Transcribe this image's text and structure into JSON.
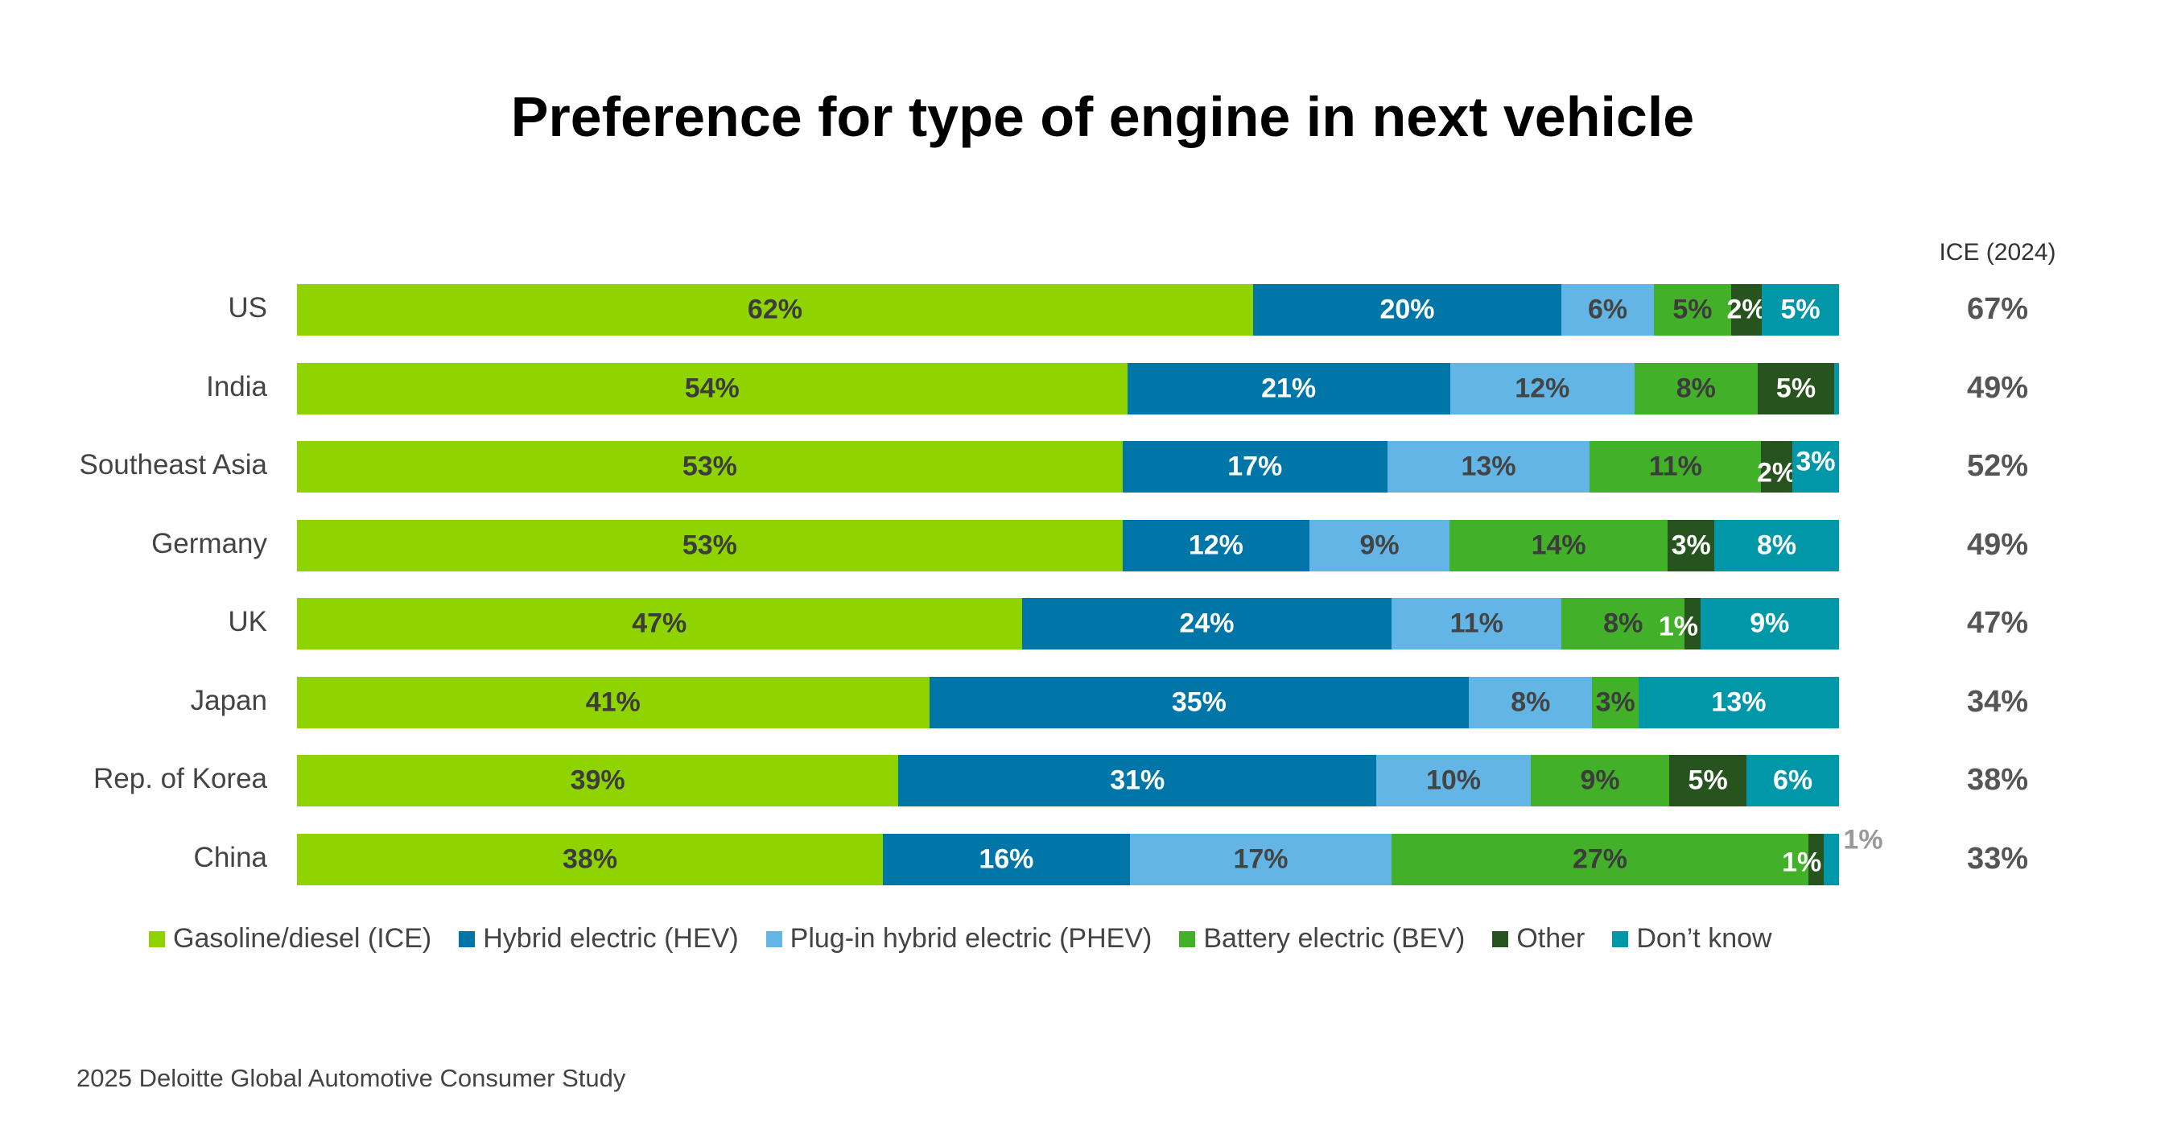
{
  "chart_data": {
    "type": "bar",
    "orientation": "horizontal",
    "stacked": true,
    "title": "Preference for type of engine in next vehicle",
    "categories": [
      "US",
      "India",
      "Southeast Asia",
      "Germany",
      "UK",
      "Japan",
      "Rep. of Korea",
      "China"
    ],
    "series": [
      {
        "name": "Gasoline/diesel (ICE)",
        "color": "#8FD400",
        "label_color": "#3c3c3c",
        "values": [
          62,
          54,
          53,
          53,
          47,
          41,
          39,
          38
        ],
        "labels": [
          "62%",
          "54%",
          "53%",
          "53%",
          "47%",
          "41%",
          "39%",
          "38%"
        ]
      },
      {
        "name": "Hybrid electric (HEV)",
        "color": "#0076A8",
        "label_color": "#ffffff",
        "values": [
          20,
          21,
          17,
          12,
          24,
          35,
          31,
          16
        ],
        "labels": [
          "20%",
          "21%",
          "17%",
          "12%",
          "24%",
          "35%",
          "31%",
          "16%"
        ]
      },
      {
        "name": "Plug-in hybrid electric (PHEV)",
        "color": "#62B5E5",
        "label_color": "#444444",
        "values": [
          6,
          12,
          13,
          9,
          11,
          8,
          10,
          17
        ],
        "labels": [
          "6%",
          "12%",
          "13%",
          "9%",
          "11%",
          "8%",
          "10%",
          "17%"
        ]
      },
      {
        "name": "Battery electric (BEV)",
        "color": "#43B02A",
        "label_color": "#3c3c3c",
        "values": [
          5,
          8,
          11,
          14,
          8,
          3,
          9,
          27
        ],
        "labels": [
          "5%",
          "8%",
          "11%",
          "14%",
          "8%",
          "3%",
          "9%",
          "27%"
        ]
      },
      {
        "name": "Other",
        "color": "#26531E",
        "label_color": "#ffffff",
        "values": [
          2,
          5,
          2,
          3,
          1,
          0,
          5,
          1
        ],
        "labels": [
          "2%",
          "5%",
          "2%",
          "3%",
          "1%",
          "",
          "5%",
          "1%"
        ]
      },
      {
        "name": "Don’t know",
        "color": "#0097A9",
        "label_color": "#ffffff",
        "values": [
          5,
          0.3,
          3,
          8,
          9,
          13,
          6,
          1
        ],
        "labels": [
          "5%",
          "",
          "3%",
          "8%",
          "9%",
          "13%",
          "6%",
          "1%"
        ]
      }
    ],
    "side_column": {
      "header": "ICE (2024)",
      "values": [
        "67%",
        "49%",
        "52%",
        "49%",
        "47%",
        "34%",
        "38%",
        "33%"
      ]
    },
    "legend_position": "bottom",
    "grid": false
  },
  "source": "2025 Deloitte Global Automotive Consumer Study"
}
